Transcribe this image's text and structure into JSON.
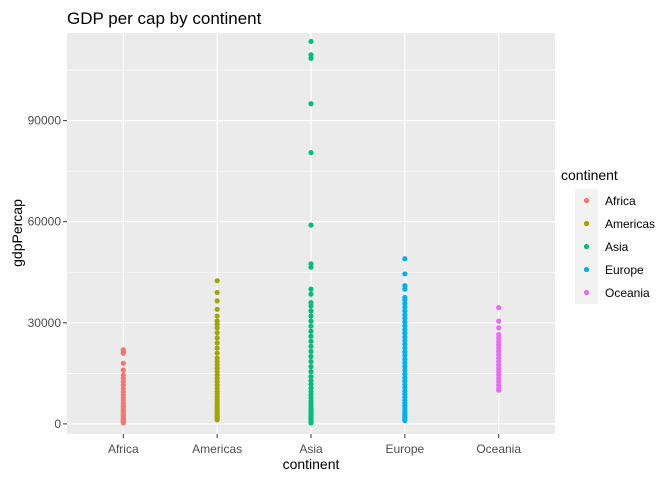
{
  "chart_data": {
    "type": "scatter",
    "title": "GDP per cap by continent",
    "xlabel": "continent",
    "ylabel": "gdpPercap",
    "categories": [
      "Africa",
      "Americas",
      "Asia",
      "Europe",
      "Oceania"
    ],
    "ylim": [
      -3000,
      116000
    ],
    "y_ticks": [
      0,
      30000,
      60000,
      90000
    ],
    "y_tick_labels": [
      "0",
      "30000",
      "60000",
      "90000"
    ],
    "grid": true,
    "legend": {
      "title": "continent",
      "position": "right",
      "entries": [
        "Africa",
        "Americas",
        "Asia",
        "Europe",
        "Oceania"
      ]
    },
    "colors": {
      "Africa": "#F8766D",
      "Americas": "#A3A500",
      "Asia": "#00BF7D",
      "Europe": "#00B0F6",
      "Oceania": "#E76BF3"
    },
    "series": [
      {
        "name": "Africa",
        "values": [
          300,
          500,
          800,
          1000,
          1300,
          1600,
          2000,
          2400,
          2800,
          3300,
          3800,
          4300,
          4900,
          5500,
          6200,
          7000,
          7800,
          8600,
          9500,
          10500,
          11500,
          12500,
          13500,
          14500,
          16000,
          18000,
          21000,
          21500,
          22000
        ]
      },
      {
        "name": "Americas",
        "values": [
          1200,
          1600,
          2000,
          2500,
          3000,
          3500,
          4000,
          4600,
          5200,
          5800,
          6500,
          7200,
          8000,
          8800,
          9600,
          10500,
          11500,
          12500,
          13500,
          14500,
          15500,
          16500,
          17500,
          18500,
          19500,
          21000,
          22500,
          24000,
          25500,
          27000,
          28500,
          29500,
          30500,
          32000,
          34000,
          36500,
          39000,
          42500
        ]
      },
      {
        "name": "Asia",
        "values": [
          300,
          600,
          900,
          1200,
          1500,
          1900,
          2300,
          2800,
          3300,
          3900,
          4500,
          5200,
          6000,
          6800,
          7700,
          8600,
          9600,
          10600,
          11700,
          12800,
          14000,
          15500,
          17000,
          18500,
          20000,
          21500,
          23000,
          24500,
          26000,
          27500,
          29000,
          30500,
          32000,
          33500,
          35000,
          36000,
          38500,
          40000,
          46500,
          47500,
          59000,
          80500,
          95000,
          108500,
          109500,
          113500
        ]
      },
      {
        "name": "Europe",
        "values": [
          1000,
          1500,
          2000,
          2600,
          3200,
          3900,
          4600,
          5400,
          6200,
          7000,
          7900,
          8800,
          9700,
          10700,
          11700,
          12700,
          13700,
          14800,
          15900,
          17000,
          18100,
          19200,
          20300,
          21400,
          22500,
          23600,
          24700,
          25800,
          26900,
          28000,
          29100,
          30200,
          31300,
          32400,
          33500,
          34600,
          35700,
          36800,
          37500,
          40000,
          41000,
          44500,
          49000
        ]
      },
      {
        "name": "Oceania",
        "values": [
          10000,
          10500,
          11500,
          12500,
          13500,
          14500,
          15500,
          16500,
          17500,
          18500,
          19500,
          20500,
          21500,
          22500,
          23500,
          24500,
          25500,
          26500,
          28500,
          30500,
          34500
        ]
      }
    ]
  }
}
